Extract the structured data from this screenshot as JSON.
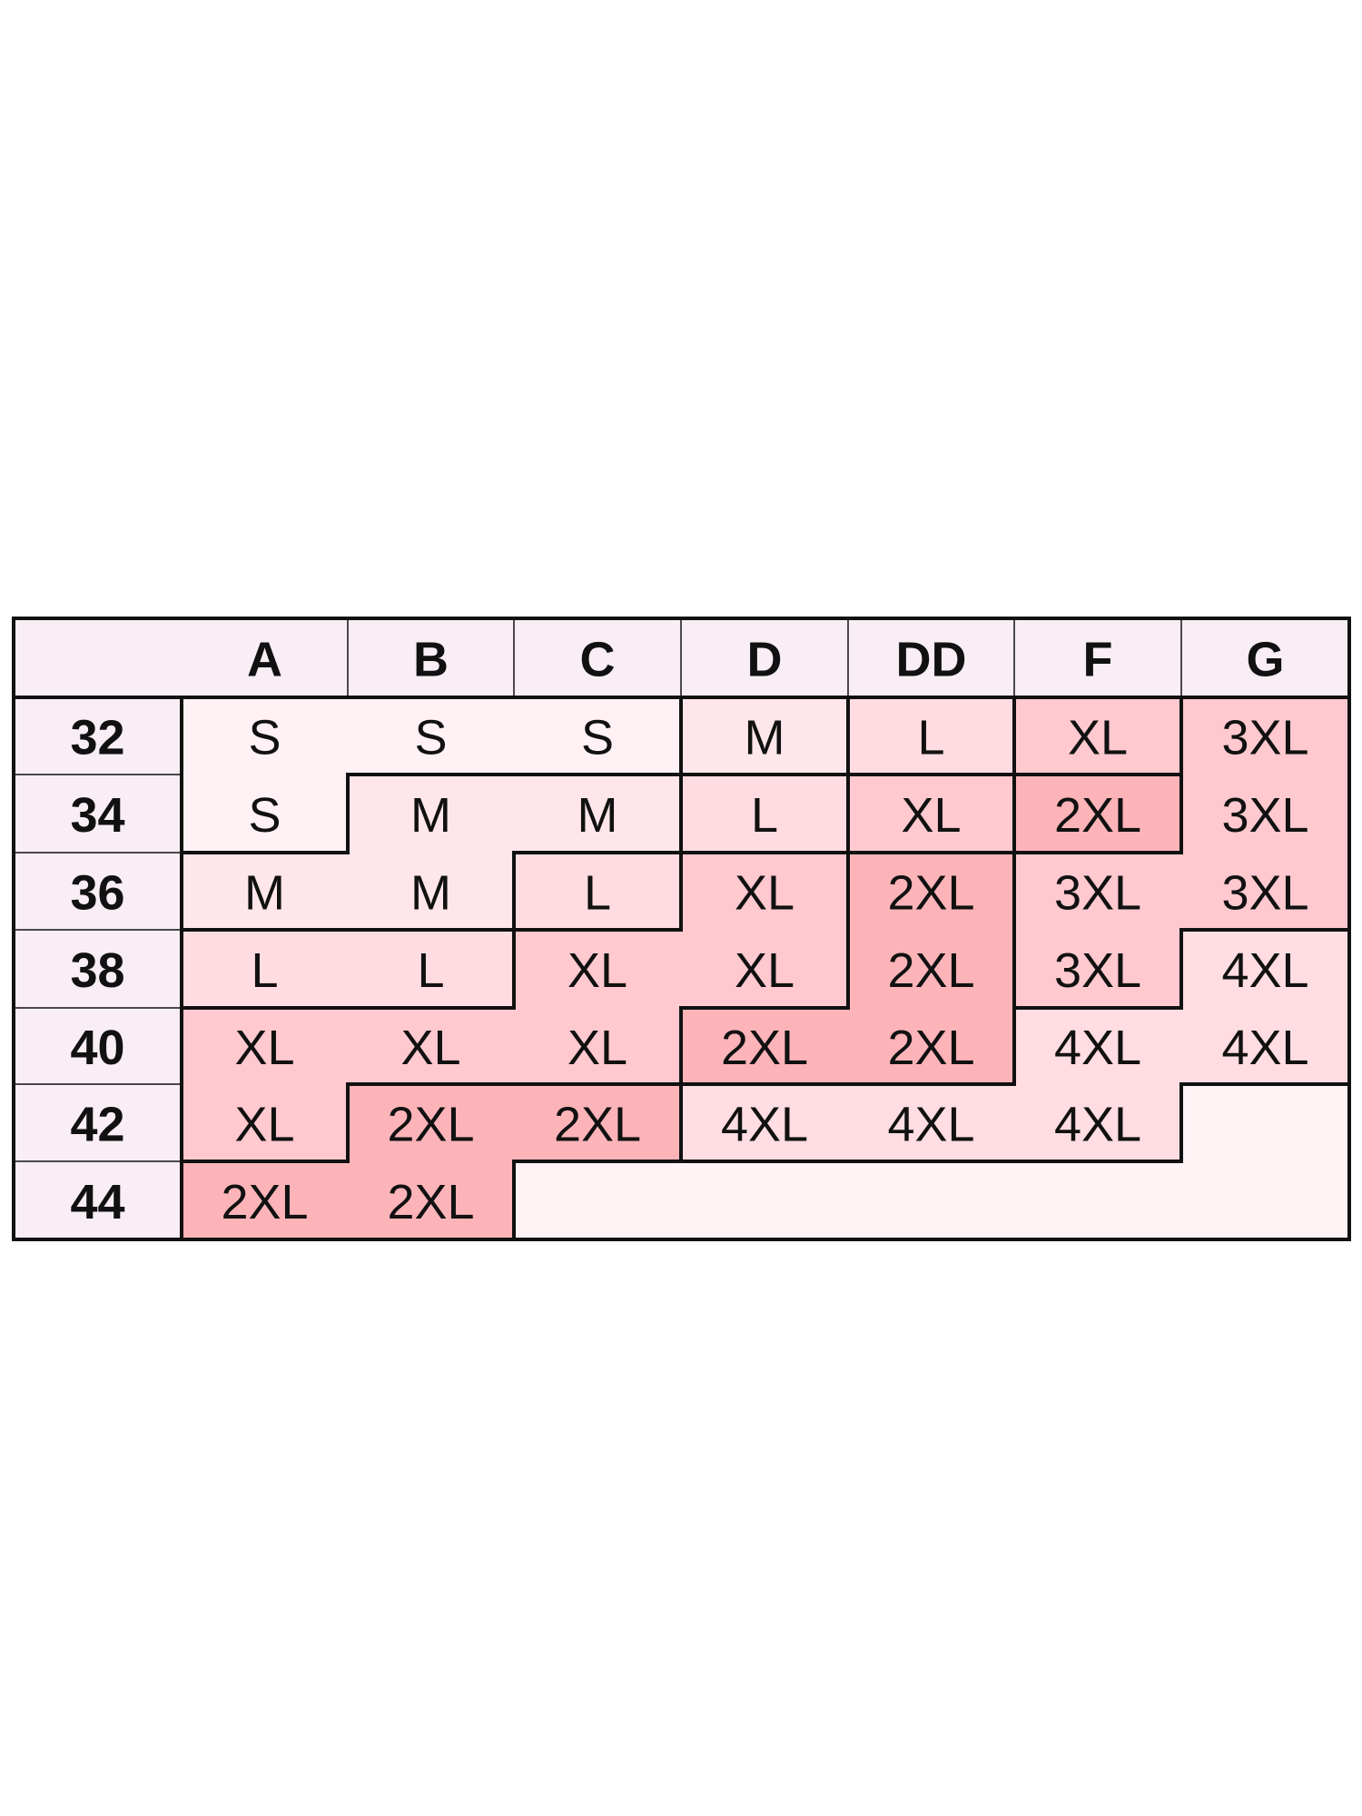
{
  "size_chart": {
    "corner_label": "",
    "columns": [
      "A",
      "B",
      "C",
      "D",
      "DD",
      "F",
      "G"
    ],
    "rows": [
      {
        "band": "32",
        "sizes": [
          "S",
          "S",
          "S",
          "M",
          "L",
          "XL",
          "3XL"
        ]
      },
      {
        "band": "34",
        "sizes": [
          "S",
          "M",
          "M",
          "L",
          "XL",
          "2XL",
          "3XL"
        ]
      },
      {
        "band": "36",
        "sizes": [
          "M",
          "M",
          "L",
          "XL",
          "2XL",
          "3XL",
          "3XL"
        ]
      },
      {
        "band": "38",
        "sizes": [
          "L",
          "L",
          "XL",
          "XL",
          "2XL",
          "3XL",
          "4XL"
        ]
      },
      {
        "band": "40",
        "sizes": [
          "XL",
          "XL",
          "XL",
          "2XL",
          "2XL",
          "4XL",
          "4XL"
        ]
      },
      {
        "band": "42",
        "sizes": [
          "XL",
          "2XL",
          "2XL",
          "4XL",
          "4XL",
          "4XL",
          ""
        ]
      },
      {
        "band": "44",
        "sizes": [
          "2XL",
          "2XL",
          "",
          "",
          "",
          "",
          ""
        ]
      }
    ],
    "colors": {
      "header_bg": "#f9eef5",
      "border": "#111111",
      "text": "#111111",
      "size_fill": {
        "S": "#fff1f4",
        "M": "#ffe6ea",
        "L": "#ffdce1",
        "XL": "#ffc9cf",
        "2XL": "#fdb4b9",
        "3XL": "#ffc9cf",
        "4XL": "#ffdde2",
        "": "#fff3f6"
      }
    }
  }
}
